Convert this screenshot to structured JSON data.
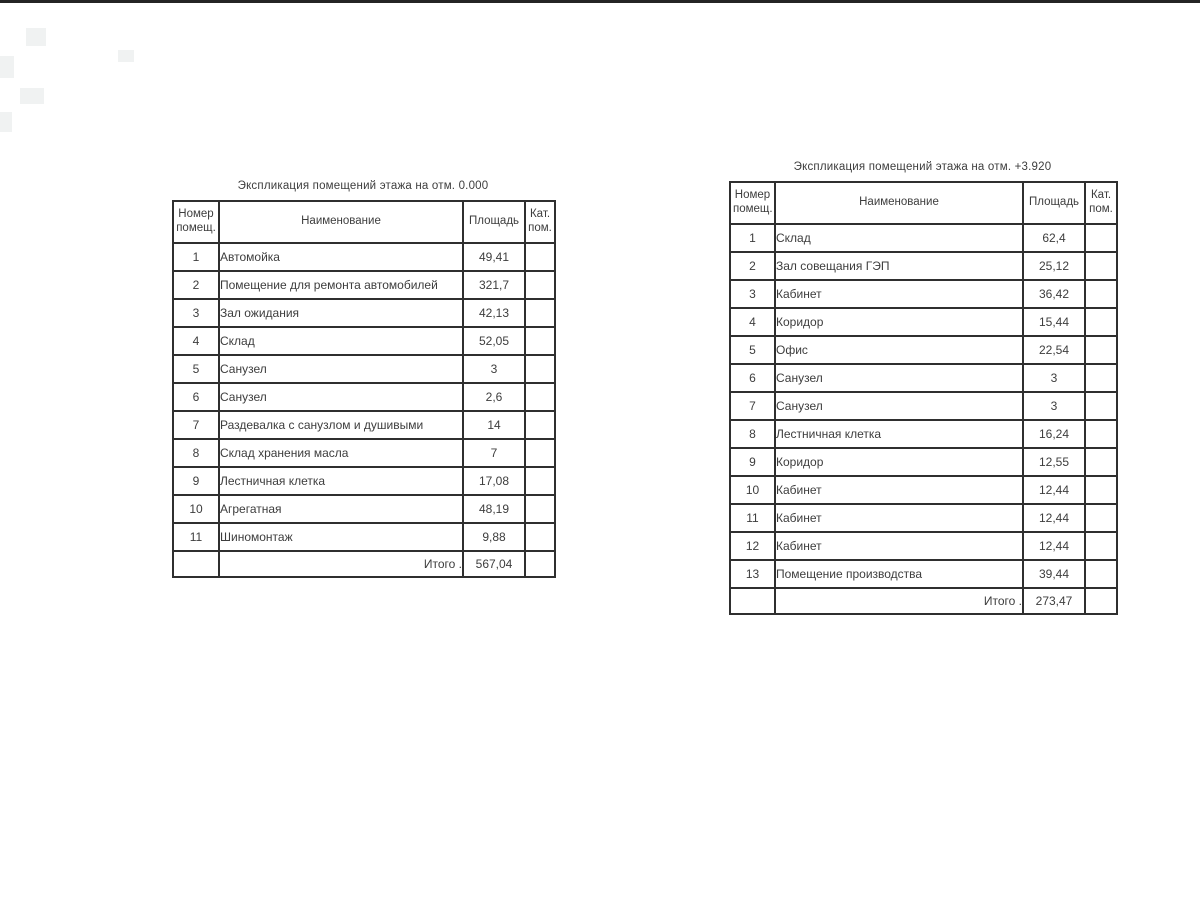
{
  "page": {
    "background": "#ffffff",
    "top_bar_color": "#242424",
    "line_color": "#2f2f2f",
    "text_color": "#3d3d3d"
  },
  "tables": [
    {
      "title": "Экспликация помещений этажа на отм. 0.000",
      "columns": [
        "Номер помещ.",
        "Наименование",
        "Площадь",
        "Кат. пом."
      ],
      "rows": [
        {
          "num": "1",
          "name": "Автомойка",
          "area": "49,41",
          "cat": ""
        },
        {
          "num": "2",
          "name": "Помещение для ремонта автомобилей",
          "area": "321,7",
          "cat": ""
        },
        {
          "num": "3",
          "name": "Зал ожидания",
          "area": "42,13",
          "cat": ""
        },
        {
          "num": "4",
          "name": "Склад",
          "area": "52,05",
          "cat": ""
        },
        {
          "num": "5",
          "name": "Санузел",
          "area": "3",
          "cat": ""
        },
        {
          "num": "6",
          "name": "Санузел",
          "area": "2,6",
          "cat": ""
        },
        {
          "num": "7",
          "name": "Раздевалка с санузлом и душивыми",
          "area": "14",
          "cat": ""
        },
        {
          "num": "8",
          "name": "Склад хранения масла",
          "area": "7",
          "cat": ""
        },
        {
          "num": "9",
          "name": "Лестничная клетка",
          "area": "17,08",
          "cat": ""
        },
        {
          "num": "10",
          "name": "Агрегатная",
          "area": "48,19",
          "cat": ""
        },
        {
          "num": "11",
          "name": "Шиномонтаж",
          "area": "9,88",
          "cat": ""
        }
      ],
      "total_label": "Итого .",
      "total_value": "567,04"
    },
    {
      "title": "Экспликация помещений этажа на отм. +3.920",
      "columns": [
        "Номер помещ.",
        "Наименование",
        "Площадь",
        "Кат. пом."
      ],
      "rows": [
        {
          "num": "1",
          "name": "Склад",
          "area": "62,4",
          "cat": ""
        },
        {
          "num": "2",
          "name": "Зал совещания ГЭП",
          "area": "25,12",
          "cat": ""
        },
        {
          "num": "3",
          "name": "Кабинет",
          "area": "36,42",
          "cat": ""
        },
        {
          "num": "4",
          "name": "Коридор",
          "area": "15,44",
          "cat": ""
        },
        {
          "num": "5",
          "name": "Офис",
          "area": "22,54",
          "cat": ""
        },
        {
          "num": "6",
          "name": "Санузел",
          "area": "3",
          "cat": ""
        },
        {
          "num": "7",
          "name": "Санузел",
          "area": "3",
          "cat": ""
        },
        {
          "num": "8",
          "name": "Лестничная клетка",
          "area": "16,24",
          "cat": ""
        },
        {
          "num": "9",
          "name": "Коридор",
          "area": "12,55",
          "cat": ""
        },
        {
          "num": "10",
          "name": "Кабинет",
          "area": "12,44",
          "cat": ""
        },
        {
          "num": "11",
          "name": "Кабинет",
          "area": "12,44",
          "cat": ""
        },
        {
          "num": "12",
          "name": "Кабинет",
          "area": "12,44",
          "cat": ""
        },
        {
          "num": "13",
          "name": "Помещение производства",
          "area": "39,44",
          "cat": ""
        }
      ],
      "total_label": "Итого .",
      "total_value": "273,47"
    }
  ]
}
